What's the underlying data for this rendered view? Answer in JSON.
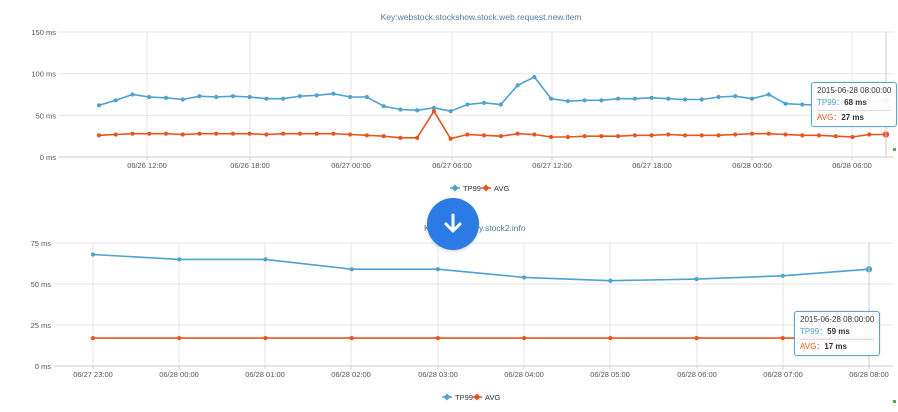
{
  "colors": {
    "tp99": "#4ea1d0",
    "avg": "#e9541e",
    "grid": "#e6e6e6",
    "button": "#2c7be5"
  },
  "chart_data": [
    {
      "type": "line",
      "title": "Key:webstock.stockshow.stock.web.request.new.item",
      "ylim": [
        0,
        150
      ],
      "yticks": [
        "0 ms",
        "50 ms",
        "100 ms",
        "150 ms"
      ],
      "xticks": [
        "06/26 12:00",
        "06/26 18:00",
        "06/27 00:00",
        "06/27 06:00",
        "06/27 12:00",
        "06/27 18:00",
        "06/28 00:00",
        "06/28 06:00"
      ],
      "x_start": "2015-06-26 08:00",
      "x_step_hours": 1,
      "grid": true,
      "legend": "bottom-center",
      "series": [
        {
          "name": "TP99",
          "values": [
            62,
            68,
            75,
            72,
            71,
            69,
            73,
            72,
            73,
            72,
            70,
            70,
            73,
            74,
            76,
            72,
            72,
            61,
            57,
            56,
            59,
            55,
            63,
            65,
            63,
            86,
            96,
            70,
            67,
            68,
            68,
            70,
            70,
            71,
            70,
            69,
            69,
            72,
            73,
            70,
            75,
            64,
            63,
            62,
            64,
            64,
            65,
            68
          ]
        },
        {
          "name": "AVG",
          "values": [
            26,
            27,
            28,
            28,
            28,
            27,
            28,
            28,
            28,
            28,
            27,
            28,
            28,
            28,
            28,
            27,
            26,
            25,
            23,
            23,
            55,
            22,
            27,
            26,
            25,
            28,
            27,
            24,
            24,
            25,
            25,
            25,
            26,
            26,
            27,
            26,
            26,
            26,
            27,
            28,
            28,
            27,
            26,
            26,
            25,
            24,
            27,
            27
          ]
        }
      ],
      "tooltip": {
        "time": "2015-06-28 08:00:00",
        "tp99_label": "TP99：",
        "tp99_value": "68 ms",
        "avg_label": "AVG：",
        "avg_value": "27 ms"
      }
    },
    {
      "type": "line",
      "title": "Key:webstock.stockshow.query.stock2.info",
      "title_visible_left": "K",
      "title_visible_right": "y.stock2.info",
      "ylim": [
        0,
        75
      ],
      "yticks": [
        "0 ms",
        "25 ms",
        "50 ms",
        "75 ms"
      ],
      "xticks": [
        "06/27 23:00",
        "06/28 00:00",
        "06/28 01:00",
        "06/28 02:00",
        "06/28 03:00",
        "06/28 04:00",
        "06/28 05:00",
        "06/28 06:00",
        "06/28 07:00",
        "06/28 08:00"
      ],
      "grid": true,
      "legend": "bottom-center",
      "series": [
        {
          "name": "TP99",
          "values": [
            68,
            65,
            65,
            59,
            59,
            54,
            52,
            53,
            55,
            59
          ]
        },
        {
          "name": "AVG",
          "values": [
            17,
            17,
            17,
            17,
            17,
            17,
            17,
            17,
            17,
            17
          ]
        }
      ],
      "tooltip": {
        "time": "2015-06-28 08:00:00",
        "tp99_label": "TP99：",
        "tp99_value": "59 ms",
        "avg_label": "AVG：",
        "avg_value": "17 ms"
      }
    }
  ]
}
